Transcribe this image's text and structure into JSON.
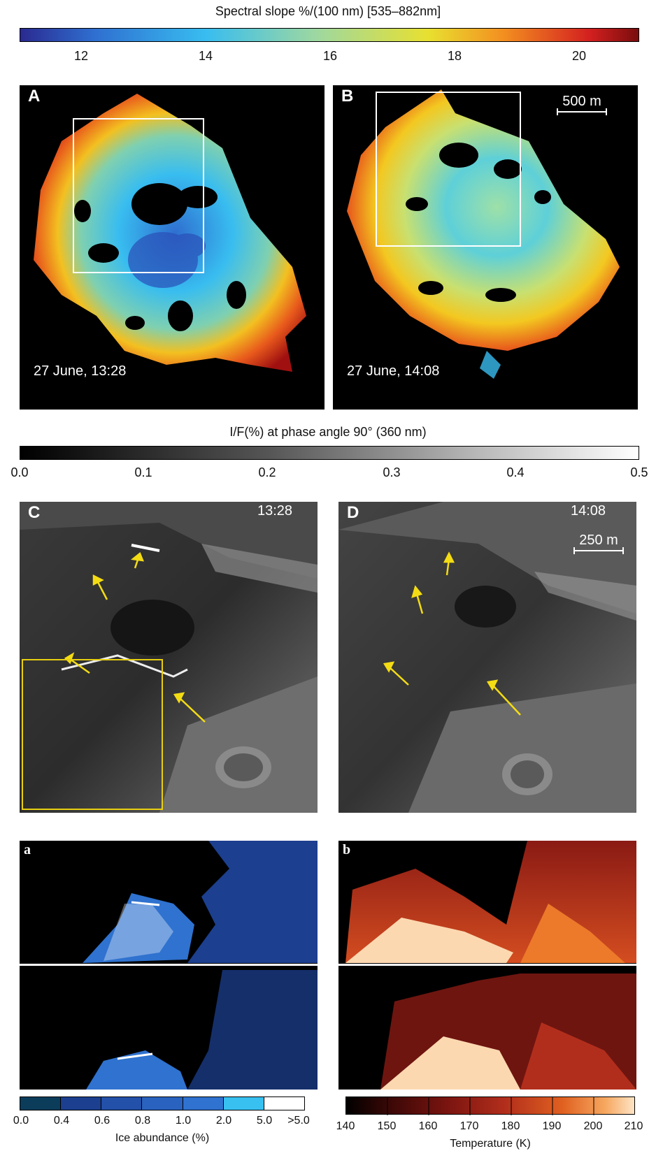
{
  "spectral_bar": {
    "title": "Spectral slope %/(100 nm) [535–882nm]",
    "ticks": [
      "12",
      "14",
      "16",
      "18",
      "20"
    ],
    "colors": [
      "#2a2a90",
      "#2f6fd0",
      "#38bdf0",
      "#9ed8a0",
      "#f3e020",
      "#f39020",
      "#d42020",
      "#7a0d0d"
    ]
  },
  "panel_A": {
    "label": "A",
    "timestamp": "27 June, 13:28"
  },
  "panel_B": {
    "label": "B",
    "timestamp": "27 June, 14:08",
    "scale_label": "500 m"
  },
  "if_bar": {
    "title": "I/F(%) at phase angle 90° (360 nm)",
    "ticks": [
      "0.0",
      "0.1",
      "0.2",
      "0.3",
      "0.4",
      "0.5"
    ]
  },
  "panel_C": {
    "label": "C",
    "time": "13:28"
  },
  "panel_D": {
    "label": "D",
    "time": "14:08",
    "scale_label": "250 m"
  },
  "panel_a": {
    "label": "a"
  },
  "panel_b": {
    "label": "b"
  },
  "ice_bar": {
    "title": "Ice abundance (%)",
    "ticks": [
      "0.0",
      "0.4",
      "0.6",
      "0.8",
      "1.0",
      "2.0",
      "5.0",
      ">5.0"
    ],
    "colors": [
      "#0b3d5a",
      "#1c3f8f",
      "#2350a8",
      "#2a62bf",
      "#2f72cf",
      "#3a86d8",
      "#38c0f0",
      "#ffffff"
    ]
  },
  "temp_bar": {
    "title": "Temperature (K)",
    "ticks": [
      "140",
      "150",
      "160",
      "170",
      "180",
      "190",
      "200",
      "210"
    ],
    "colors": [
      "#000000",
      "#2a0504",
      "#5a0e0c",
      "#8a1a14",
      "#b22e1c",
      "#d44d20",
      "#ec7a2a",
      "#f6a860",
      "#fcd8b0"
    ]
  },
  "accent": {
    "arrow": "#f4dc14",
    "box_yellow": "#e8cf10",
    "box_white": "#ffffff"
  }
}
